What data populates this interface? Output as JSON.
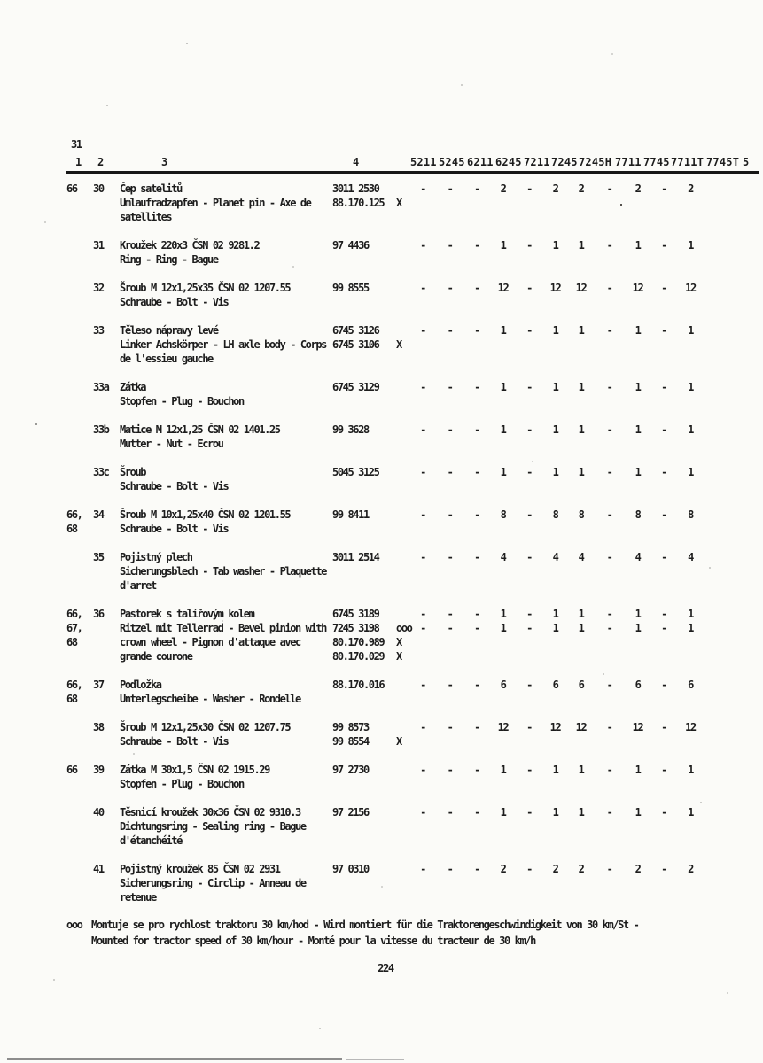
{
  "page": {
    "figure_number": "31",
    "page_number": "224"
  },
  "header": {
    "col_numbers": [
      "1",
      "2",
      "3",
      "4"
    ],
    "models": [
      "5211",
      "5245",
      "6211",
      "6245",
      "7211",
      "7245",
      "7245H",
      "7711",
      "7745",
      "7711T",
      "7745T"
    ],
    "last_col": "5"
  },
  "table": {
    "rows": [
      {
        "refs": [
          "66"
        ],
        "item": "30",
        "desc": [
          "Čep satelitů",
          "Umlaufradzapfen - Planet pin - Axe de",
          "satellites"
        ],
        "parts": [
          {
            "number": "3011 2530",
            "marker": ""
          },
          {
            "number": "88.170.125",
            "marker": "X"
          }
        ],
        "qty": [
          [
            "-",
            "-",
            "-",
            "2",
            "-",
            "2",
            "2",
            "-",
            "2",
            "-",
            "2"
          ]
        ]
      },
      {
        "refs": [],
        "item": "31",
        "desc": [
          "Kroužek 220x3 ČSN 02 9281.2",
          "Ring - Ring - Bague"
        ],
        "parts": [
          {
            "number": "97 4436",
            "marker": ""
          }
        ],
        "qty": [
          [
            "-",
            "-",
            "-",
            "1",
            "-",
            "1",
            "1",
            "-",
            "1",
            "-",
            "1"
          ]
        ]
      },
      {
        "refs": [],
        "item": "32",
        "desc": [
          "Šroub M 12x1,25x35 ČSN 02 1207.55",
          "Schraube - Bolt - Vis"
        ],
        "parts": [
          {
            "number": "99 8555",
            "marker": ""
          }
        ],
        "qty": [
          [
            "-",
            "-",
            "-",
            "12",
            "-",
            "12",
            "12",
            "-",
            "12",
            "-",
            "12"
          ]
        ]
      },
      {
        "refs": [],
        "item": "33",
        "desc": [
          "Těleso nápravy levé",
          "Linker Achskörper - LH axle body - Corps",
          "de l'essieu gauche"
        ],
        "parts": [
          {
            "number": "6745 3126",
            "marker": ""
          },
          {
            "number": "6745 3106",
            "marker": "X"
          }
        ],
        "qty": [
          [
            "-",
            "-",
            "-",
            "1",
            "-",
            "1",
            "1",
            "-",
            "1",
            "-",
            "1"
          ]
        ]
      },
      {
        "refs": [],
        "item": "33a",
        "desc": [
          "Zátka",
          "Stopfen - Plug - Bouchon"
        ],
        "parts": [
          {
            "number": "6745 3129",
            "marker": ""
          }
        ],
        "qty": [
          [
            "-",
            "-",
            "-",
            "1",
            "-",
            "1",
            "1",
            "-",
            "1",
            "-",
            "1"
          ]
        ]
      },
      {
        "refs": [],
        "item": "33b",
        "desc": [
          "Matice M 12x1,25 ČSN 02 1401.25",
          "Mutter - Nut - Ecrou"
        ],
        "parts": [
          {
            "number": "99 3628",
            "marker": ""
          }
        ],
        "qty": [
          [
            "-",
            "-",
            "-",
            "1",
            "-",
            "1",
            "1",
            "-",
            "1",
            "-",
            "1"
          ]
        ]
      },
      {
        "refs": [],
        "item": "33c",
        "desc": [
          "Šroub",
          "Schraube - Bolt - Vis"
        ],
        "parts": [
          {
            "number": "5045 3125",
            "marker": ""
          }
        ],
        "qty": [
          [
            "-",
            "-",
            "-",
            "1",
            "-",
            "1",
            "1",
            "-",
            "1",
            "-",
            "1"
          ]
        ]
      },
      {
        "refs": [
          "66,",
          "68"
        ],
        "item": "34",
        "desc": [
          "Šroub M 10x1,25x40 ČSN 02 1201.55",
          "Schraube - Bolt - Vis"
        ],
        "parts": [
          {
            "number": "99 8411",
            "marker": ""
          }
        ],
        "qty": [
          [
            "-",
            "-",
            "-",
            "8",
            "-",
            "8",
            "8",
            "-",
            "8",
            "-",
            "8"
          ]
        ]
      },
      {
        "refs": [],
        "item": "35",
        "desc": [
          "Pojistný plech",
          "Sicherungsblech - Tab washer - Plaquette",
          "d'arret"
        ],
        "parts": [
          {
            "number": "3011 2514",
            "marker": ""
          }
        ],
        "qty": [
          [
            "-",
            "-",
            "-",
            "4",
            "-",
            "4",
            "4",
            "-",
            "4",
            "-",
            "4"
          ]
        ]
      },
      {
        "refs": [
          "66,",
          "67,",
          "68"
        ],
        "item": "36",
        "desc": [
          "Pastorek s talířovým kolem",
          "Ritzel mit Tellerrad - Bevel pinion with",
          "crown wheel - Pignon d'attaque avec",
          "grande courone"
        ],
        "parts": [
          {
            "number": "6745 3189",
            "marker": ""
          },
          {
            "number": "7245 3198",
            "marker": "ooo"
          },
          {
            "number": "80.170.989",
            "marker": "X"
          },
          {
            "number": "80.170.029",
            "marker": "X"
          }
        ],
        "qty": [
          [
            "-",
            "-",
            "-",
            "1",
            "-",
            "1",
            "1",
            "-",
            "1",
            "-",
            "1"
          ],
          [
            "-",
            "-",
            "-",
            "1",
            "-",
            "1",
            "1",
            "-",
            "1",
            "-",
            "1"
          ]
        ]
      },
      {
        "refs": [
          "66,",
          "68"
        ],
        "item": "37",
        "desc": [
          "Podložka",
          "Unterlegscheibe - Washer - Rondelle"
        ],
        "parts": [
          {
            "number": "88.170.016",
            "marker": ""
          }
        ],
        "qty": [
          [
            "-",
            "-",
            "-",
            "6",
            "-",
            "6",
            "6",
            "-",
            "6",
            "-",
            "6"
          ]
        ]
      },
      {
        "refs": [],
        "item": "38",
        "desc": [
          "Šroub M 12x1,25x30 ČSN 02 1207.75",
          "Schraube - Bolt - Vis"
        ],
        "parts": [
          {
            "number": "99 8573",
            "marker": ""
          },
          {
            "number": "99 8554",
            "marker": "X"
          }
        ],
        "qty": [
          [
            "-",
            "-",
            "-",
            "12",
            "-",
            "12",
            "12",
            "-",
            "12",
            "-",
            "12"
          ]
        ]
      },
      {
        "refs": [
          "66"
        ],
        "item": "39",
        "desc": [
          "Zátka M 30x1,5 ČSN 02 1915.29",
          "Stopfen - Plug - Bouchon"
        ],
        "parts": [
          {
            "number": "97 2730",
            "marker": ""
          }
        ],
        "qty": [
          [
            "-",
            "-",
            "-",
            "1",
            "-",
            "1",
            "1",
            "-",
            "1",
            "-",
            "1"
          ]
        ]
      },
      {
        "refs": [],
        "item": "40",
        "desc": [
          "Těsnicí kroužek 30x36 ČSN 02 9310.3",
          "Dichtungsring - Sealing ring - Bague",
          "d'étanchéité"
        ],
        "parts": [
          {
            "number": "97 2156",
            "marker": ""
          }
        ],
        "qty": [
          [
            "-",
            "-",
            "-",
            "1",
            "-",
            "1",
            "1",
            "-",
            "1",
            "-",
            "1"
          ]
        ]
      },
      {
        "refs": [],
        "item": "41",
        "desc": [
          "Pojistný kroužek 85 ČSN 02 2931",
          "Sicherungsring - Circlip - Anneau de",
          "retenue"
        ],
        "parts": [
          {
            "number": "97 0310",
            "marker": ""
          }
        ],
        "qty": [
          [
            "-",
            "-",
            "-",
            "2",
            "-",
            "2",
            "2",
            "-",
            "2",
            "-",
            "2"
          ]
        ]
      }
    ]
  },
  "footnote": {
    "marker": "ooo",
    "lines": [
      "Montuje se pro rychlost traktoru 30 km/hod - Wird montiert für die Traktorengeschwindigkeit von 30 km/St -",
      "Mounted for tractor speed of 30 km/hour - Monté pour la vitesse du tracteur de 30 km/h"
    ]
  }
}
